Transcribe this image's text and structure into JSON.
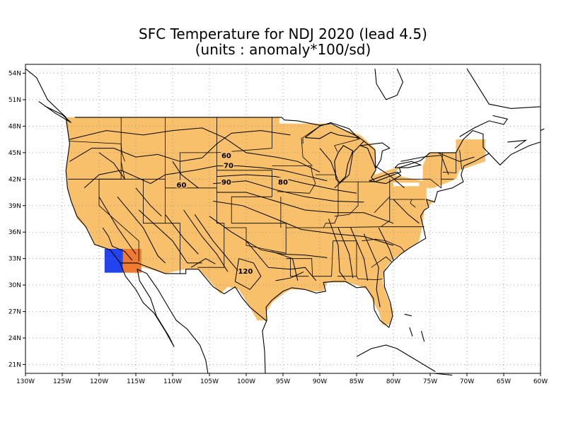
{
  "title": {
    "line1": "SFC Temperature for NDJ 2020 (lead 4.5)",
    "line2": "(units : anomaly*100/sd)"
  },
  "colors": {
    "positive_light": "#f8c06a",
    "positive_medium": "#ef7a30",
    "negative": "#2244ee",
    "coast": "#000000",
    "grid": "#888888"
  },
  "axes": {
    "lon_min": -130,
    "lon_max": -60,
    "lat_min": 20,
    "lat_max": 55,
    "x_ticks": [
      {
        "value": -130,
        "label": "130W"
      },
      {
        "value": -125,
        "label": "125W"
      },
      {
        "value": -120,
        "label": "120W"
      },
      {
        "value": -115,
        "label": "115W"
      },
      {
        "value": -110,
        "label": "110W"
      },
      {
        "value": -105,
        "label": "105W"
      },
      {
        "value": -100,
        "label": "100W"
      },
      {
        "value": -95,
        "label": "95W"
      },
      {
        "value": -90,
        "label": "90W"
      },
      {
        "value": -85,
        "label": "85W"
      },
      {
        "value": -80,
        "label": "80W"
      },
      {
        "value": -75,
        "label": "75W"
      },
      {
        "value": -70,
        "label": "70W"
      },
      {
        "value": -65,
        "label": "65W"
      },
      {
        "value": -60,
        "label": "60W"
      }
    ],
    "y_ticks": [
      {
        "value": 21,
        "label": "21N"
      },
      {
        "value": 24,
        "label": "24N"
      },
      {
        "value": 27,
        "label": "27N"
      },
      {
        "value": 30,
        "label": "30N"
      },
      {
        "value": 33,
        "label": "33N"
      },
      {
        "value": 36,
        "label": "36N"
      },
      {
        "value": 39,
        "label": "39N"
      },
      {
        "value": 42,
        "label": "42N"
      },
      {
        "value": 45,
        "label": "45N"
      },
      {
        "value": 48,
        "label": "48N"
      },
      {
        "value": 51,
        "label": "51N"
      },
      {
        "value": 54,
        "label": "54N"
      }
    ],
    "grid": "dotted"
  },
  "contour_labels": [
    {
      "text": "60",
      "lon": -108.8,
      "lat": 41.4
    },
    {
      "text": "60",
      "lon": -102.7,
      "lat": 44.7
    },
    {
      "text": "70",
      "lon": -102.4,
      "lat": 43.6
    },
    {
      "text": "90",
      "lon": -102.7,
      "lat": 41.7
    },
    {
      "text": "80",
      "lon": -95.0,
      "lat": 41.7
    },
    {
      "text": "120",
      "lon": -100.1,
      "lat": 31.6
    }
  ],
  "shading": {
    "positive_light_cells": "contiguous US land area",
    "positive_medium_cells": [
      {
        "lon": -115.5,
        "lat": 32.8
      }
    ],
    "negative_cells": [
      {
        "lon": -118.0,
        "lat": 32.8
      }
    ]
  }
}
